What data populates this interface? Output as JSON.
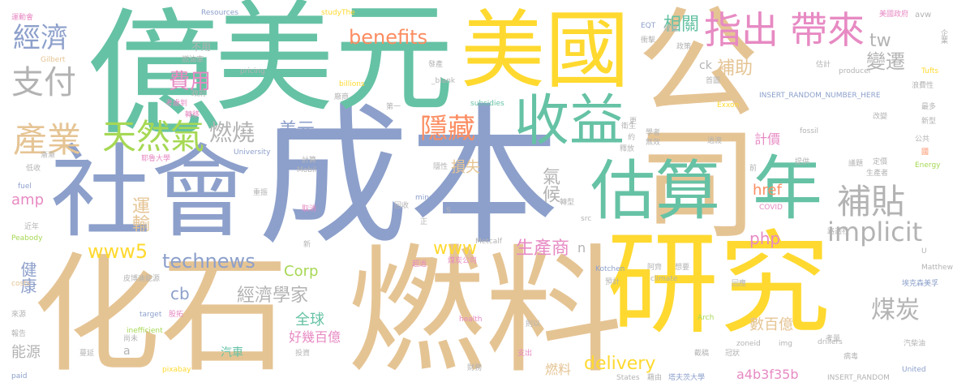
{
  "palette": {
    "green": "#66c2a5",
    "orange": "#fc8d62",
    "blue": "#8da0cb",
    "pink": "#e78ac3",
    "lime": "#a6d854",
    "yellow": "#ffd92f",
    "tan": "#e5c494",
    "gray": "#b3b3b3"
  },
  "words": {
    "cheng_ben": "成本",
    "she_hui": "社會",
    "hua_shi": "化石",
    "ran_liao": "燃料",
    "yan_jiu": "研究",
    "gong_si": "公司",
    "yi": "億",
    "mei_yuan": "美元",
    "mei_guo": "美國",
    "gu_suan": "估算",
    "nian": "年",
    "shou_yi": "收益",
    "zhi_chu": "指出",
    "dai_lai": "帶來",
    "bu_tie": "補貼",
    "tian_ran_qi": "天然氣",
    "chan_ye": "產業",
    "jing_ji": "經濟",
    "zhi_fu": "支付",
    "yin_cang": "隱藏",
    "ran_shao": "燃燒",
    "mei_yuan_small": "美元",
    "fei_yong": "費用",
    "xiang_guan": "相關",
    "bu_zhu": "補助",
    "bian_qian": "變遷",
    "tw": "tw",
    "benefits": "benefits",
    "implicit": "implicit",
    "technews": "technews",
    "www5": "www5",
    "www": "www",
    "corp": "Corp",
    "delivery": "delivery",
    "php": "php",
    "amp": "amp",
    "href": "href",
    "cb": "cb",
    "ck": "ck",
    "n": "n",
    "a": "a",
    "a4b3f35b": "a4b3f35b",
    "yun_shu": "運輸",
    "jian_kang": "健康",
    "sun_shi": "損失",
    "qi_hou": "氣候",
    "sheng_chan_shang": "生產商",
    "jing_ji_xue_jia": "經濟學家",
    "mei_tan": "煤炭",
    "quan_qiu": "全球",
    "neng_yuan": "能源",
    "shu_bai_yi": "數百億",
    "ji_jia": "計價",
    "hao_ji_bai_yi": "好幾百億",
    "qi_che": "汽車",
    "ran_liao_small": "燃料",
    "bu_yong": "不用",
    "resources": "Resources",
    "study_the": "studyThe",
    "avw": "avw",
    "eqt": "EQT",
    "gilbert": "Gilbert",
    "pricing": "pricing",
    "billions": "billions",
    "blank": "_blank",
    "insert_random_number_here": "INSERT_RANDOM_NUMBER_HERE",
    "tufts": "Tufts",
    "producer": "producer",
    "exxon": "Exxon",
    "fossil": "fossil",
    "university": "University",
    "subsidies": "subsidies",
    "energy": "Energy",
    "mobil": "Mobil",
    "fuel": "fuel",
    "miners": "miners",
    "covid": "COVID",
    "peabody": "Peabody",
    "metcalf": "Metcalf",
    "src": "src",
    "u": "U",
    "matthew": "Matthew",
    "kotchen": "Kotchen",
    "climate": "climate",
    "costs": "costs",
    "target": "target",
    "health": "health",
    "inefficient": "inefficient",
    "arch": "Arch",
    "zoneid": "zoneid",
    "img": "img",
    "drillers": "drillers",
    "paid": "paid",
    "pixabay": "pixabay",
    "states": "States",
    "insert_random": "INSERT_RANDOM",
    "united": "United",
    "s": "S",
    "mei_guo_zheng_fu": "美國政府",
    "qi_ye": "企業",
    "xiao_jiao": "效益",
    "heng_ji": "衝擊",
    "zheng_ce": "政策",
    "gu_ji": "估計",
    "shou_tu": "首圖",
    "lang_fei_xing": "浪費性",
    "gong_gong": "公共",
    "gai_bian": "改變",
    "zui_duo": "最多",
    "xin_xing": "新型",
    "guo": "國",
    "ti_gong": "提供",
    "sheng_chan_zhe": "生產者",
    "yi_ti": "議題",
    "ding_yi": "定價",
    "qian": "前",
    "guo_du": "過渡",
    "xue_zhe": "學者",
    "wu_xiao": "無效",
    "wei_sheng": "衛生",
    "yue": "約",
    "geng": "更",
    "shi_fang": "釋放",
    "fa_chan": "發產",
    "chan_shang": "廠商",
    "di_yi": "第一",
    "ran_you_che": "燃油車",
    "zheng_fu": "政府",
    "kao_lv_dao": "考慮到",
    "zhuan_yi": "轉移",
    "jian_shao": "漸漸",
    "ye_lu_da_xue": "耶魯大學",
    "di_shou": "低收",
    "ji_suan": "計算",
    "yin_xing": "隱性",
    "zhong_zhen": "重振",
    "qu_xiao": "取消",
    "hui_shou": "回收",
    "zheng": "正",
    "zhuan_xing": "轉型",
    "lu_tou_she": "路透社",
    "jin_nian": "近年",
    "xin": "新",
    "chao_yue": "超過",
    "mei_tan_gong_si": "煤炭公司",
    "xiang_yao": "想要",
    "a_qi": "阿齊",
    "yu_ji": "預計",
    "hui_ying": "回應",
    "ai_ke_sen_mei_zi": "埃克森美孚",
    "pi_bo_di_neng_yuan": "皮博迪能源",
    "lai_yuan": "來源",
    "gu_tuo": "股拓",
    "bao_gao": "報告",
    "man_yan": "蔓延",
    "shang_wei": "尚未",
    "tou_zi": "投資",
    "ce_liang": "則以",
    "zhi_chu_small": "支出",
    "cai_wu": "財務",
    "jie_you": "藉由",
    "ta_fu_sen_da_xue": "塔夫茨大學",
    "jie_cheng": "截稿",
    "guan_zhuang": "冠狀",
    "kao_liang": "考量",
    "bing_du": "病毒",
    "qi_chai_you": "汽柴油",
    "yun_dong_hui": "運動會"
  }
}
